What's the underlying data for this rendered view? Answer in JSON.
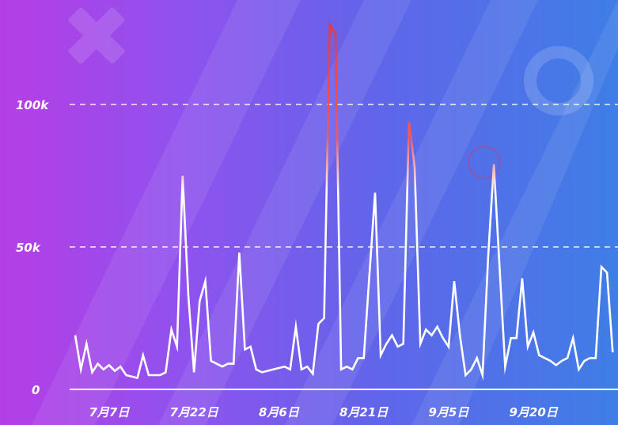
{
  "colors": {
    "background_start": "#b53ee6",
    "background_end": "#3f7ee6",
    "line": "#ffffff",
    "peak_highlight": "#e8353a",
    "grid": "#ffffff"
  },
  "decorations": [
    "cross-shape",
    "ring-shape",
    "diagonal-wave-pattern"
  ],
  "chart_data": {
    "type": "line",
    "title": "",
    "xlabel": "",
    "ylabel": "",
    "ylim": [
      0,
      125000
    ],
    "yticks": [
      0,
      50000,
      100000
    ],
    "ytick_labels": [
      "0",
      "50k",
      "100k"
    ],
    "xtick_labels": [
      "7月7日",
      "7月22日",
      "8月6日",
      "8月21日",
      "9月5日",
      "9月20日"
    ],
    "x_start": "7月1日",
    "grid": "horizontal dashed",
    "legend": "none",
    "series": [
      {
        "values": [
          19000,
          7000,
          16000,
          6000,
          9000,
          7000,
          8500,
          6500,
          8000,
          5000,
          4500,
          4000,
          12000,
          5000,
          5000,
          5000,
          6000,
          21000,
          15000,
          75000,
          33000,
          6000,
          31000,
          38000,
          10000,
          9000,
          8000,
          9000,
          9000,
          48000,
          14000,
          15000,
          7000,
          6000,
          6500,
          7000,
          7500,
          8000,
          7000,
          22000,
          7000,
          8000,
          5500,
          23000,
          25000,
          128000,
          125000,
          7000,
          8000,
          7000,
          11000,
          11000,
          40000,
          69000,
          12000,
          16000,
          19000,
          15000,
          16000,
          94000,
          78000,
          16000,
          21000,
          19000,
          22000,
          18000,
          15000,
          38000,
          19000,
          5000,
          7000,
          11000,
          5000,
          47000,
          79000,
          43000,
          8000,
          18000,
          18000,
          39000,
          15000,
          20000,
          12000,
          11000,
          10000,
          8500,
          10000,
          11000,
          18000,
          7000,
          10000,
          11000,
          11000,
          43000,
          41000,
          13000
        ]
      }
    ]
  }
}
